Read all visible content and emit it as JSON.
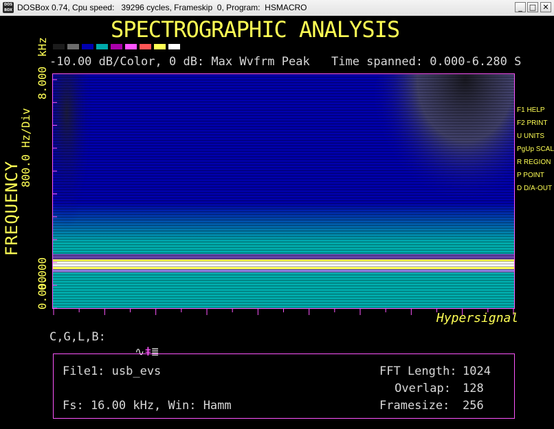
{
  "window": {
    "title": "DOSBox 0.74, Cpu speed:   39296 cycles, Frameskip  0, Program:  HSMACRO",
    "icon_label": "DOS BOX",
    "buttons": {
      "minimize": "_",
      "maximize": "□",
      "close": "✕"
    }
  },
  "header": {
    "title": "SPECTROGRAPHIC ANALYSIS",
    "subtitle": "-10.00 dB/Color, 0 dB: Max Wvfrm Peak",
    "time_spanned": "Time spanned: 0.000-6.280 S",
    "palette": [
      "#1c1c1c",
      "#6c6c6c",
      "#0000b0",
      "#00aaaa",
      "#aa00aa",
      "#ff55ff",
      "#ff5555",
      "#ffff55",
      "#ffffff"
    ]
  },
  "axis": {
    "title": "FREQUENCY",
    "units": "kHz",
    "division": "800.0 Hz/Div",
    "tick_top": "8.000",
    "tick_mid": "0.000",
    "tick_bottom": "0.000",
    "x_ticks": 19,
    "y_ticks": 10
  },
  "spectrogram": {
    "brand": "Hypersignal",
    "time_range_s": [
      0.0,
      6.28
    ],
    "freq_range_khz": [
      0.0,
      8.0
    ],
    "dominant_band_khz": 0.5
  },
  "commands": {
    "line": "C,G,L,B:",
    "icons": [
      "waveform-icon",
      "cursor-plus-icon",
      "lines-icon"
    ]
  },
  "keys": [
    "F1 HELP",
    "F2 PRINT",
    "U UNITS",
    "PgUp SCALE",
    "R REGION",
    "P POINT",
    "D D/A-OUT"
  ],
  "info": {
    "file": "File1: usb_evs",
    "fs": "Fs: 16.00 kHz, Win: Hamm",
    "fft_label": "FFT Length:",
    "fft_value": "1024",
    "overlap_label": "Overlap:",
    "overlap_value": "128",
    "framesize_label": "Framesize:",
    "framesize_value": "256"
  }
}
